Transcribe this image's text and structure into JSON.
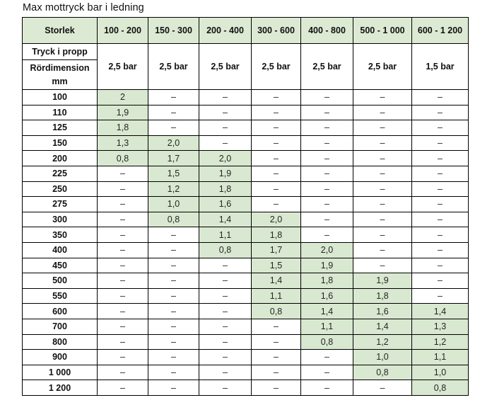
{
  "title": "Max mottryck bar i ledning",
  "dash": "–",
  "table": {
    "corner_label": "Storlek",
    "column_ranges": [
      "100 - 200",
      "150 - 300",
      "200 - 400",
      "300 - 600",
      "400 - 800",
      "500 - 1 000",
      "600 - 1 200"
    ],
    "left_sub_labels": {
      "line1": "Tryck i propp",
      "line2": "Rördimension",
      "line3": "mm"
    },
    "plug_pressures": [
      "2,5 bar",
      "2,5 bar",
      "2,5 bar",
      "2,5 bar",
      "2,5 bar",
      "2,5 bar",
      "1,5 bar"
    ],
    "rows": [
      {
        "dimension": "100",
        "values": [
          "2",
          "–",
          "–",
          "–",
          "–",
          "–",
          "–"
        ]
      },
      {
        "dimension": "110",
        "values": [
          "1,9",
          "–",
          "–",
          "–",
          "–",
          "–",
          "–"
        ]
      },
      {
        "dimension": "125",
        "values": [
          "1,8",
          "–",
          "–",
          "–",
          "–",
          "–",
          "–"
        ]
      },
      {
        "dimension": "150",
        "values": [
          "1,3",
          "2,0",
          "–",
          "–",
          "–",
          "–",
          "–"
        ]
      },
      {
        "dimension": "200",
        "values": [
          "0,8",
          "1,7",
          "2,0",
          "–",
          "–",
          "–",
          "–"
        ]
      },
      {
        "dimension": "225",
        "values": [
          "–",
          "1,5",
          "1,9",
          "–",
          "–",
          "–",
          "–"
        ]
      },
      {
        "dimension": "250",
        "values": [
          "–",
          "1,2",
          "1,8",
          "–",
          "–",
          "–",
          "–"
        ]
      },
      {
        "dimension": "275",
        "values": [
          "–",
          "1,0",
          "1,6",
          "–",
          "–",
          "–",
          "–"
        ]
      },
      {
        "dimension": "300",
        "values": [
          "–",
          "0,8",
          "1,4",
          "2,0",
          "–",
          "–",
          "–"
        ]
      },
      {
        "dimension": "350",
        "values": [
          "–",
          "–",
          "1,1",
          "1,8",
          "–",
          "–",
          "–"
        ]
      },
      {
        "dimension": "400",
        "values": [
          "–",
          "–",
          "0,8",
          "1,7",
          "2,0",
          "–",
          "–"
        ]
      },
      {
        "dimension": "450",
        "values": [
          "–",
          "–",
          "–",
          "1,5",
          "1,9",
          "–",
          "–"
        ]
      },
      {
        "dimension": "500",
        "values": [
          "–",
          "–",
          "–",
          "1,4",
          "1,8",
          "1,9",
          "–"
        ]
      },
      {
        "dimension": "550",
        "values": [
          "–",
          "–",
          "–",
          "1,1",
          "1,6",
          "1,8",
          "–"
        ]
      },
      {
        "dimension": "600",
        "values": [
          "–",
          "–",
          "–",
          "0,8",
          "1,4",
          "1,6",
          "1,4"
        ]
      },
      {
        "dimension": "700",
        "values": [
          "–",
          "–",
          "–",
          "–",
          "1,1",
          "1,4",
          "1,3"
        ]
      },
      {
        "dimension": "800",
        "values": [
          "–",
          "–",
          "–",
          "–",
          "0,8",
          "1,2",
          "1,2"
        ]
      },
      {
        "dimension": "900",
        "values": [
          "–",
          "–",
          "–",
          "–",
          "–",
          "1,0",
          "1,1"
        ]
      },
      {
        "dimension": "1 000",
        "values": [
          "–",
          "–",
          "–",
          "–",
          "–",
          "0,8",
          "1,0"
        ]
      },
      {
        "dimension": "1 200",
        "values": [
          "–",
          "–",
          "–",
          "–",
          "–",
          "–",
          "0,8"
        ]
      }
    ]
  },
  "colors": {
    "header_green": "#dcead3",
    "value_green": "#d9e8d0",
    "border": "#000000",
    "background": "#ffffff",
    "text": "#1a1a1a"
  }
}
